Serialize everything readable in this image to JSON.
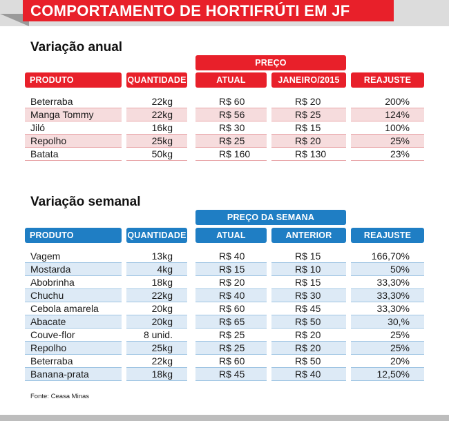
{
  "title": "COMPORTAMENTO DE HORTIFRÚTI EM JF",
  "annual": {
    "section_title": "Variação anual",
    "group_header": "PREÇO",
    "headers": {
      "produto": "PRODUTO",
      "quantidade": "QUANTIDADE",
      "atual": "ATUAL",
      "anterior": "JANEIRO/2015",
      "reajuste": "REAJUSTE"
    },
    "rows": [
      {
        "produto": "Beterraba",
        "quantidade": "22kg",
        "atual": "R$ 60",
        "anterior": "R$ 20",
        "reajuste": "200%"
      },
      {
        "produto": "Manga Tommy",
        "quantidade": "22kg",
        "atual": "R$ 56",
        "anterior": "R$ 25",
        "reajuste": "124%"
      },
      {
        "produto": "Jiló",
        "quantidade": "16kg",
        "atual": "R$ 30",
        "anterior": "R$ 15",
        "reajuste": "100%"
      },
      {
        "produto": "Repolho",
        "quantidade": "25kg",
        "atual": "R$ 25",
        "anterior": "R$ 20",
        "reajuste": "25%"
      },
      {
        "produto": "Batata",
        "quantidade": "50kg",
        "atual": "R$ 160",
        "anterior": "R$ 130",
        "reajuste": "23%"
      }
    ]
  },
  "weekly": {
    "section_title": "Variação semanal",
    "group_header": "PREÇO DA SEMANA",
    "headers": {
      "produto": "PRODUTO",
      "quantidade": "QUANTIDADE",
      "atual": "ATUAL",
      "anterior": "ANTERIOR",
      "reajuste": "REAJUSTE"
    },
    "rows": [
      {
        "produto": "Vagem",
        "quantidade": "13kg",
        "atual": "R$ 40",
        "anterior": "R$ 15",
        "reajuste": "166,70%"
      },
      {
        "produto": "Mostarda",
        "quantidade": "4kg",
        "atual": "R$ 15",
        "anterior": "R$ 10",
        "reajuste": "50%"
      },
      {
        "produto": "Abobrinha",
        "quantidade": "18kg",
        "atual": "R$ 20",
        "anterior": "R$ 15",
        "reajuste": "33,30%"
      },
      {
        "produto": "Chuchu",
        "quantidade": "22kg",
        "atual": "R$ 40",
        "anterior": "R$ 30",
        "reajuste": "33,30%"
      },
      {
        "produto": "Cebola amarela",
        "quantidade": "20kg",
        "atual": "R$ 60",
        "anterior": "R$ 45",
        "reajuste": "33,30%"
      },
      {
        "produto": "Abacate",
        "quantidade": "20kg",
        "atual": "R$ 65",
        "anterior": "R$ 50",
        "reajuste": "30,%"
      },
      {
        "produto": "Couve-flor",
        "quantidade": "8 unid.",
        "atual": "R$ 25",
        "anterior": "R$ 20",
        "reajuste": "25%"
      },
      {
        "produto": "Repolho",
        "quantidade": "25kg",
        "atual": "R$ 25",
        "anterior": "R$ 20",
        "reajuste": "25%"
      },
      {
        "produto": "Beterraba",
        "quantidade": "22kg",
        "atual": "R$ 60",
        "anterior": "R$ 50",
        "reajuste": "20%"
      },
      {
        "produto": "Banana-prata",
        "quantidade": "18kg",
        "atual": "R$ 45",
        "anterior": "R$ 40",
        "reajuste": "12,50%"
      }
    ]
  },
  "source": "Fonte: Ceasa Minas",
  "colors": {
    "red": "#e8202a",
    "blue": "#1f7ec4",
    "pink_row": "#f6dcdd",
    "blue_row": "#ddeaf6"
  }
}
